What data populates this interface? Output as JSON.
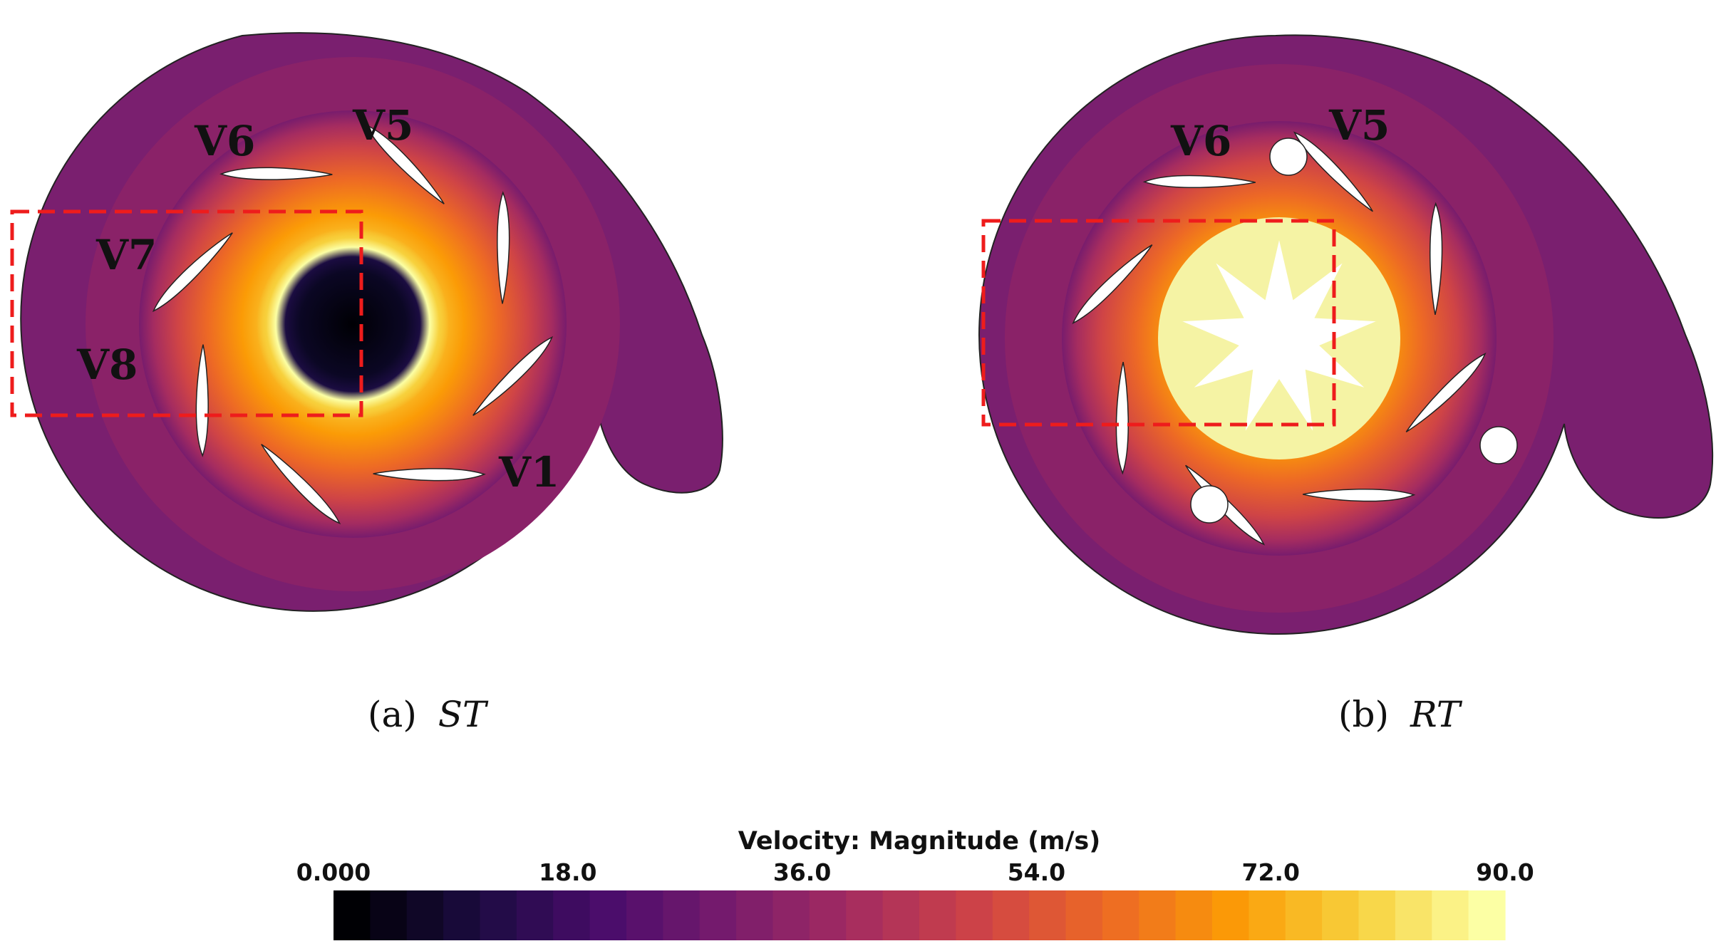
{
  "panels": [
    {
      "id": "a",
      "caption_prefix": "(a)",
      "caption_name": "ST",
      "vane_labels": [
        "V5",
        "V6",
        "V7",
        "V8",
        "V1"
      ]
    },
    {
      "id": "b",
      "caption_prefix": "(b)",
      "caption_name": "RT",
      "vane_labels": [
        "V5",
        "V6"
      ]
    }
  ],
  "colorbar": {
    "title": "Velocity: Magnitude (m/s)",
    "ticks": [
      "0.000",
      "18.0",
      "36.0",
      "54.0",
      "72.0",
      "90.0"
    ],
    "min": 0,
    "max": 90,
    "bands": 32,
    "colormap": "inferno",
    "stops": [
      "#000004",
      "#1b0c41",
      "#4a0c6b",
      "#781c6d",
      "#a52c60",
      "#cf4446",
      "#ed6925",
      "#fb9b06",
      "#f7d13d",
      "#fcffa4"
    ]
  },
  "colors": {
    "roi_box": "#ee1c1c",
    "vane": "#ffffff",
    "rotor_core": "#f5f3a4"
  }
}
